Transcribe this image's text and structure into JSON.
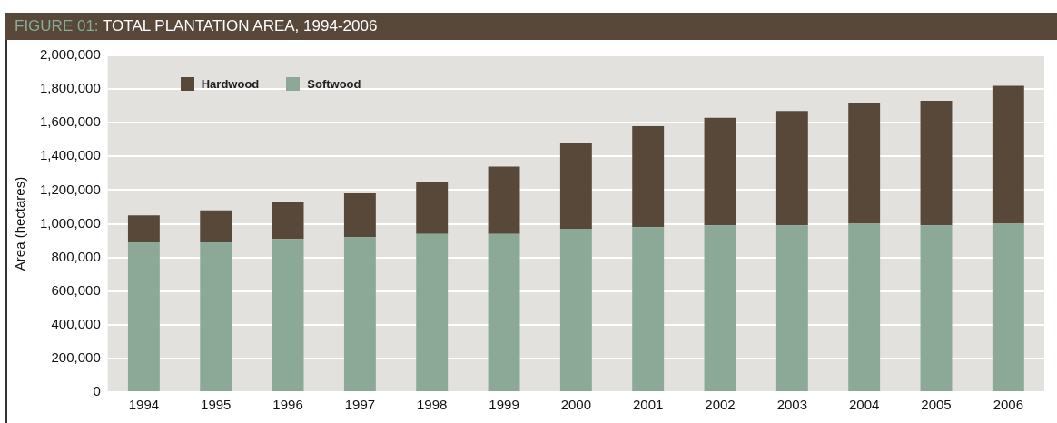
{
  "chart_data": {
    "type": "bar",
    "title": "FIGURE 01: TOTAL PLANTATION AREA, 1994-2006",
    "ylabel": "Area (hectares)",
    "categories": [
      "1994",
      "1995",
      "1996",
      "1997",
      "1998",
      "1999",
      "2000",
      "2001",
      "2002",
      "2003",
      "2004",
      "2005",
      "2006"
    ],
    "stacked": true,
    "series": [
      {
        "name": "Softwood",
        "color": "#8ba996",
        "values": [
          890000,
          890000,
          910000,
          920000,
          940000,
          940000,
          970000,
          980000,
          990000,
          990000,
          1000000,
          990000,
          1000000
        ]
      },
      {
        "name": "Hardwood",
        "color": "#58483a",
        "values": [
          160000,
          190000,
          220000,
          260000,
          310000,
          400000,
          510000,
          600000,
          640000,
          680000,
          720000,
          740000,
          820000
        ]
      }
    ],
    "ylim": [
      0,
      2000000
    ],
    "yticks": [
      0,
      {
        "value": 200000,
        "label": "200,000"
      },
      {
        "value": 400000,
        "label": "400,000"
      },
      {
        "value": 600000,
        "label": "600,000"
      },
      {
        "value": 800000,
        "label": "800,000"
      },
      {
        "value": 1000000,
        "label": "1,000,000"
      },
      {
        "value": 1200000,
        "label": "1,200,000"
      },
      {
        "value": 1400000,
        "label": "1,400,000"
      },
      {
        "value": 1600000,
        "label": "1,600,000"
      },
      {
        "value": 1800000,
        "label": "1,800,000"
      },
      {
        "value": 2000000,
        "label": "2,000,000"
      }
    ],
    "grid": "y",
    "legend": "top left"
  }
}
